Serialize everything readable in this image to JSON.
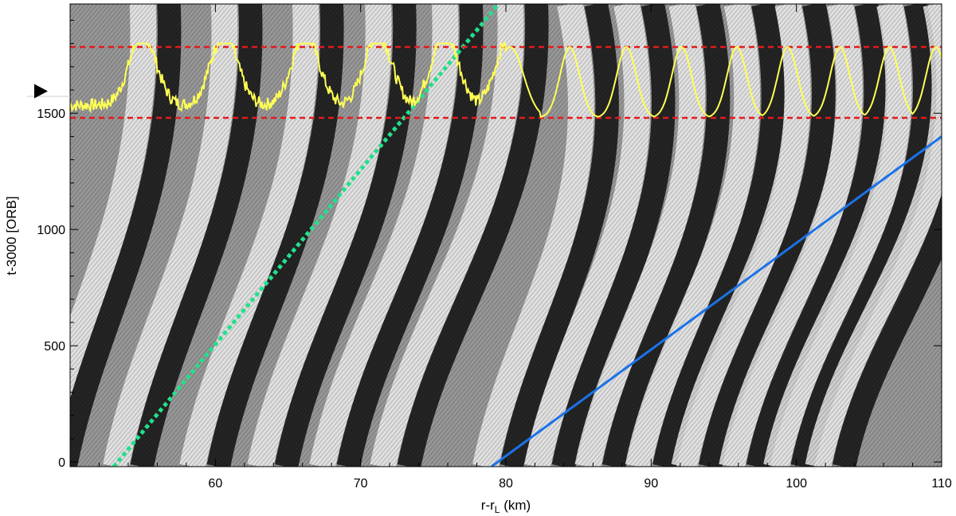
{
  "chart_data": {
    "type": "heatmap",
    "title": "",
    "xlabel": "r-r",
    "xlabel_subscript": "L",
    "xlabel_suffix": " (km)",
    "ylabel": "t-3000 [ORB]",
    "xlim": [
      50,
      110
    ],
    "ylim": [
      -20,
      1970
    ],
    "x_ticks": [
      60,
      70,
      80,
      90,
      100,
      110
    ],
    "x_tick_labels": [
      "60",
      "70",
      "80",
      "90",
      "100",
      "110"
    ],
    "y_ticks": [
      0,
      500,
      1000,
      1500
    ],
    "y_tick_labels": [
      "0",
      "500",
      "1000",
      "1500"
    ],
    "grid": false,
    "background_colormap": "grayscale oscillating wave pattern",
    "overlays": [
      {
        "name": "",
        "kind": "line",
        "style": "dotted",
        "color": "#22e08a",
        "points": [
          [
            53.0,
            -20
          ],
          [
            79.5,
            1970
          ]
        ]
      },
      {
        "name": "",
        "kind": "line",
        "style": "solid",
        "color": "#1a73e8",
        "points": [
          [
            79.0,
            -20
          ],
          [
            110.0,
            1400
          ]
        ]
      },
      {
        "name": "",
        "kind": "hline",
        "style": "dashed",
        "color": "#e31a1c",
        "y": 1785
      },
      {
        "name": "",
        "kind": "hline",
        "style": "dashed",
        "color": "#e31a1c",
        "y": 1480
      },
      {
        "name": "",
        "kind": "profile",
        "style": "solid",
        "color": "#ffff55",
        "baseline": 1480,
        "peak": 1785,
        "peaks_x": [
          55.0,
          60.6,
          66.2,
          71.2,
          75.8,
          80.3,
          84.4,
          88.3,
          92.1,
          95.9,
          99.4,
          103.0,
          106.4,
          109.6
        ]
      }
    ],
    "marker": {
      "shape": "triangle-right",
      "color": "#000000",
      "y": 1595
    }
  }
}
